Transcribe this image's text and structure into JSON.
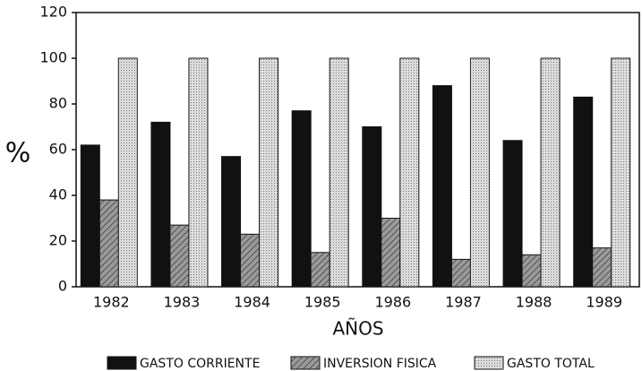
{
  "chart_data": {
    "type": "bar",
    "categories": [
      "1982",
      "1983",
      "1984",
      "1985",
      "1986",
      "1987",
      "1988",
      "1989"
    ],
    "series": [
      {
        "name": "GASTO CORRIENTE",
        "color": "#111111",
        "values": [
          62,
          72,
          57,
          77,
          70,
          88,
          64,
          83
        ]
      },
      {
        "name": "INVERSION FISICA",
        "color": "#9a9a9a",
        "values": [
          38,
          27,
          23,
          15,
          30,
          12,
          14,
          17
        ]
      },
      {
        "name": "GASTO TOTAL",
        "color": "#dcdcdc",
        "values": [
          100,
          100,
          100,
          100,
          100,
          100,
          100,
          100
        ]
      }
    ],
    "ylim": [
      0,
      120
    ],
    "yticks": [
      0,
      20,
      40,
      60,
      80,
      100,
      120
    ],
    "y_label": "%",
    "x_label": "AÑOS",
    "grid": false,
    "legend": "bottom"
  }
}
